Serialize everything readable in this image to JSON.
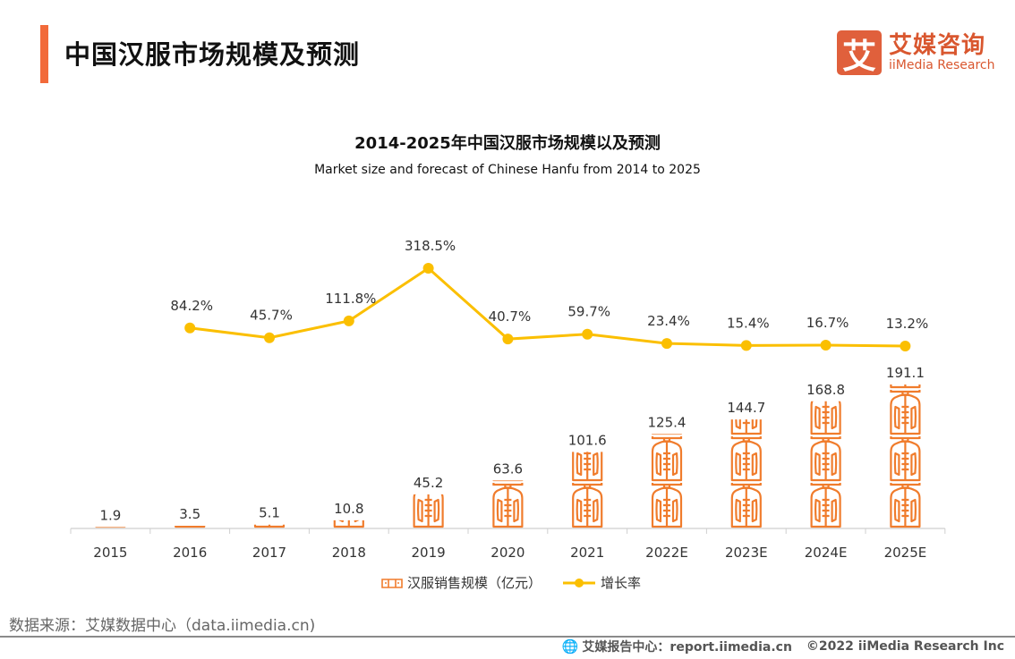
{
  "header": {
    "title": "中国汉服市场规模及预测",
    "accent_color": "#f26a3a"
  },
  "logo": {
    "mark": "艾",
    "name_cn": "艾媒咨询",
    "name_en": "iiMedia Research",
    "color": "#e0603c"
  },
  "chart_data": {
    "type": "bar",
    "title": "2014-2025年中国汉服市场规模以及预测",
    "subtitle": "Market size and forecast of Chinese Hanfu from 2014 to 2025",
    "categories": [
      "2015",
      "2016",
      "2017",
      "2018",
      "2019",
      "2020",
      "2021",
      "2022E",
      "2023E",
      "2024E",
      "2025E"
    ],
    "series": [
      {
        "name": "汉服销售规模（亿元）",
        "type": "pictogram-bar",
        "icon": "hanfu-jacket-icon",
        "color": "#f07c2c",
        "values": [
          1.9,
          3.5,
          5.1,
          10.8,
          45.2,
          63.6,
          101.6,
          125.4,
          144.7,
          168.8,
          191.1
        ],
        "labels": [
          "1.9",
          "3.5",
          "5.1",
          "10.8",
          "45.2",
          "63.6",
          "101.6",
          "125.4",
          "144.7",
          "168.8",
          "191.1"
        ]
      },
      {
        "name": "增长率",
        "type": "line",
        "color": "#fbbf00",
        "values": [
          null,
          84.2,
          45.7,
          111.8,
          318.5,
          40.7,
          59.7,
          23.4,
          15.4,
          16.7,
          13.2
        ],
        "labels": [
          "",
          "84.2%",
          "45.7%",
          "111.8%",
          "318.5%",
          "40.7%",
          "59.7%",
          "23.4%",
          "15.4%",
          "16.7%",
          "13.2%"
        ]
      }
    ],
    "xlabel": "",
    "ylabel": "",
    "grid": false,
    "legend_position": "bottom-center"
  },
  "legend": {
    "bar_label": "汉服销售规模（亿元）",
    "line_label": "增长率"
  },
  "source": "数据来源：艾媒数据中心（data.iimedia.cn)",
  "footer": {
    "report": "艾媒报告中心：report.iimedia.cn",
    "copyright": "©2022  iiMedia Research  Inc"
  }
}
